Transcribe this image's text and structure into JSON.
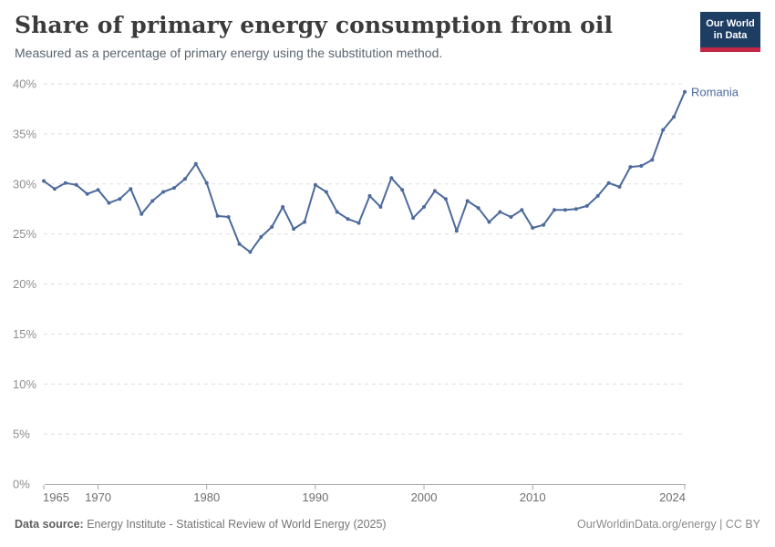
{
  "header": {
    "title": "Share of primary energy consumption from oil",
    "subtitle": "Measured as a percentage of primary energy using the substitution method."
  },
  "logo": {
    "line1": "Our World",
    "line2": "in Data",
    "bg": "#1d3d63",
    "accent": "#c32746"
  },
  "chart_data": {
    "type": "line",
    "title": "Share of primary energy consumption from oil",
    "entity_label": "Romania",
    "x": [
      1965,
      1966,
      1967,
      1968,
      1969,
      1970,
      1971,
      1972,
      1973,
      1974,
      1975,
      1976,
      1977,
      1978,
      1979,
      1980,
      1981,
      1982,
      1983,
      1984,
      1985,
      1986,
      1987,
      1988,
      1989,
      1990,
      1991,
      1992,
      1993,
      1994,
      1995,
      1996,
      1997,
      1998,
      1999,
      2000,
      2001,
      2002,
      2003,
      2004,
      2005,
      2006,
      2007,
      2008,
      2009,
      2010,
      2011,
      2012,
      2013,
      2014,
      2015,
      2016,
      2017,
      2018,
      2019,
      2020,
      2021,
      2022,
      2023,
      2024
    ],
    "series": [
      {
        "name": "Romania",
        "color": "#4C6A9C",
        "values": [
          30.3,
          29.5,
          30.1,
          29.9,
          29.0,
          29.4,
          28.1,
          28.5,
          29.5,
          27.0,
          28.3,
          29.2,
          29.6,
          30.5,
          32.0,
          30.1,
          26.8,
          26.7,
          24.0,
          23.2,
          24.7,
          25.7,
          27.7,
          25.5,
          26.2,
          29.9,
          29.2,
          27.2,
          26.5,
          26.1,
          28.8,
          27.7,
          30.6,
          29.4,
          26.6,
          27.7,
          29.3,
          28.5,
          25.3,
          28.3,
          27.6,
          26.2,
          27.2,
          26.7,
          27.4,
          25.6,
          25.9,
          27.4,
          27.4,
          27.5,
          27.8,
          28.8,
          30.1,
          29.7,
          31.7,
          31.8,
          32.4,
          35.4,
          36.7,
          39.2
        ]
      }
    ],
    "ylim": [
      0,
      40
    ],
    "ytick_values": [
      0,
      5,
      10,
      15,
      20,
      25,
      30,
      35,
      40
    ],
    "ytick_labels": [
      "0%",
      "5%",
      "10%",
      "15%",
      "20%",
      "25%",
      "30%",
      "35%",
      "40%"
    ],
    "xtick_values": [
      1965,
      1970,
      1980,
      1990,
      2000,
      2010,
      2024
    ],
    "xtick_labels": [
      "1965",
      "1970",
      "1980",
      "1990",
      "2000",
      "2010",
      "2024"
    ],
    "grid": true,
    "legend": "end-of-line-label",
    "ylabel": "",
    "xlabel": ""
  },
  "footer": {
    "source_label": "Data source:",
    "source_value": " Energy Institute - Statistical Review of World Energy (2025)",
    "right": "OurWorldinData.org/energy | CC BY"
  }
}
